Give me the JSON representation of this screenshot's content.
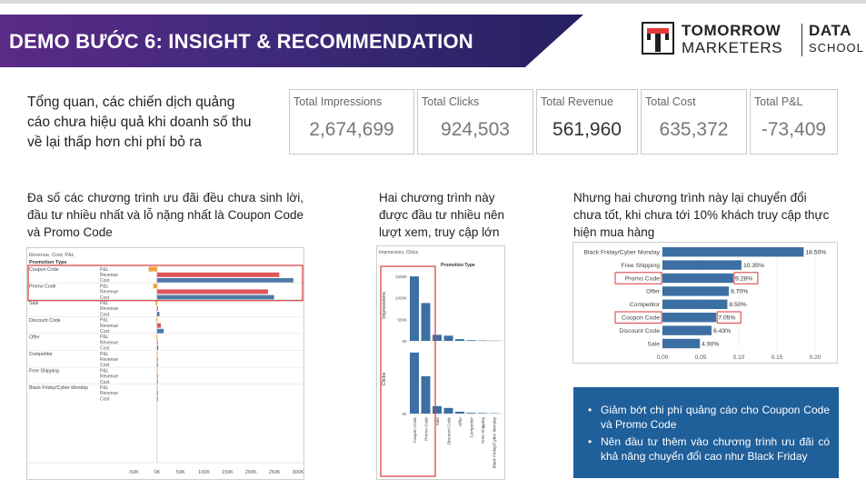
{
  "header": {
    "title": "DEMO BƯỚC 6: INSIGHT & RECOMMENDATION",
    "logo_line1": "TOMORROW",
    "logo_line2": "MARKETERS",
    "logo_line3": "DATA",
    "logo_line4": "SCHOOL"
  },
  "overview_text": "Tổng quan, các chiến dịch quảng cáo chưa hiệu quả khi doanh số thu về lại thấp hơn chi phí bỏ ra",
  "kpis": [
    {
      "label": "Total Impressions",
      "value": "2,674,699"
    },
    {
      "label": "Total Clicks",
      "value": "924,503"
    },
    {
      "label": "Total Revenue",
      "value": "561,960"
    },
    {
      "label": "Total Cost",
      "value": "635,372"
    },
    {
      "label": "Total P&L",
      "value": "-73,409"
    }
  ],
  "captions": {
    "c1": "Đa số các chương trình ưu đãi đều chưa sinh lời, đầu tư nhiều nhất và lỗ nặng nhất là Coupon Code và Promo Code",
    "c2": "Hai chương trình này được đầu tư nhiều nên lượt xem, truy cập lớn",
    "c3": "Nhưng hai chương trình này lại chuyển đổi chưa tốt, khi chưa tới 10% khách truy cập thực hiện mua hàng"
  },
  "recommendations": [
    "Giảm bớt chi phí quảng cáo cho Coupon Code và Promo Code",
    "Nên đầu tư thêm vào chương trình ưu đãi có khả năng chuyển đổi cao như Black Friday"
  ],
  "colors": {
    "pl": "#f0a13c",
    "revenue": "#e0555a",
    "cost": "#4e79a7",
    "bar": "#3c6fa4",
    "highlight": "#d63a3a",
    "banner": "#3f2a7a",
    "recbox": "#1f5f9a"
  },
  "chart_data": [
    {
      "type": "bar",
      "title": "Revenue, Cost, P&L",
      "row_header": "Promotion Type",
      "measures": [
        "P&L",
        "Revenue",
        "Cost"
      ],
      "categories": [
        "Coupon Code",
        "Promo Code",
        "Sale",
        "Discount Code",
        "Offer",
        "Competitor",
        "Free Shipping",
        "Black Friday/Cyber Monday"
      ],
      "series": [
        {
          "name": "P&L",
          "values": [
            -18000,
            -8000,
            -3000,
            -2000,
            -1500,
            -600,
            -300,
            -200
          ]
        },
        {
          "name": "Revenue",
          "values": [
            260000,
            236000,
            2000,
            8000,
            1000,
            400,
            200,
            150
          ]
        },
        {
          "name": "Cost",
          "values": [
            290000,
            249000,
            5000,
            14000,
            2500,
            1000,
            500,
            350
          ]
        }
      ],
      "x_ticks": [
        "-50K",
        "0K",
        "50K",
        "100K",
        "150K",
        "200K",
        "250K",
        "300K"
      ],
      "xlim": [
        -50000,
        300000
      ],
      "highlighted": [
        "Coupon Code",
        "Promo Code"
      ]
    },
    {
      "type": "bar",
      "title": "Impressions, Clicks",
      "column_header": "Promotion Type",
      "categories": [
        "Coupon Code",
        "Promo Code",
        "Sale",
        "Discount Code",
        "Offer",
        "Competitor",
        "Free Shipping",
        "Black Friday/Cyber Monday"
      ],
      "series": [
        {
          "name": "Impressions",
          "values": [
            1500000,
            880000,
            140000,
            120000,
            40000,
            15000,
            8000,
            5000
          ]
        },
        {
          "name": "Clicks",
          "values": [
            490000,
            300000,
            60000,
            45000,
            15000,
            6000,
            4000,
            2500
          ]
        }
      ],
      "impressions_ticks": [
        "0K",
        "500K",
        "1000K",
        "1500K"
      ],
      "impressions_ylim": [
        0,
        1650000
      ],
      "clicks_ticks": [
        "0K"
      ],
      "clicks_ylim": [
        0,
        540000
      ],
      "highlighted": [
        "Coupon Code",
        "Promo Code"
      ]
    },
    {
      "type": "bar",
      "orientation": "horizontal",
      "categories": [
        "Black Friday/Cyber Monday",
        "Free Shipping",
        "Promo Code",
        "Offer",
        "Competitor",
        "Coupon Code",
        "Discount Code",
        "Sale"
      ],
      "values": [
        0.185,
        0.1035,
        0.0928,
        0.087,
        0.085,
        0.0705,
        0.0643,
        0.049
      ],
      "labels": [
        "18.50%",
        "10.35%",
        "9.28%",
        "8.70%",
        "8.50%",
        "7.05%",
        "6.43%",
        "4.90%"
      ],
      "x_ticks": [
        "0.00",
        "0.05",
        "0.10",
        "0.15",
        "0.20"
      ],
      "xlim": [
        0,
        0.2
      ],
      "highlighted": [
        "Promo Code",
        "Coupon Code"
      ]
    }
  ]
}
